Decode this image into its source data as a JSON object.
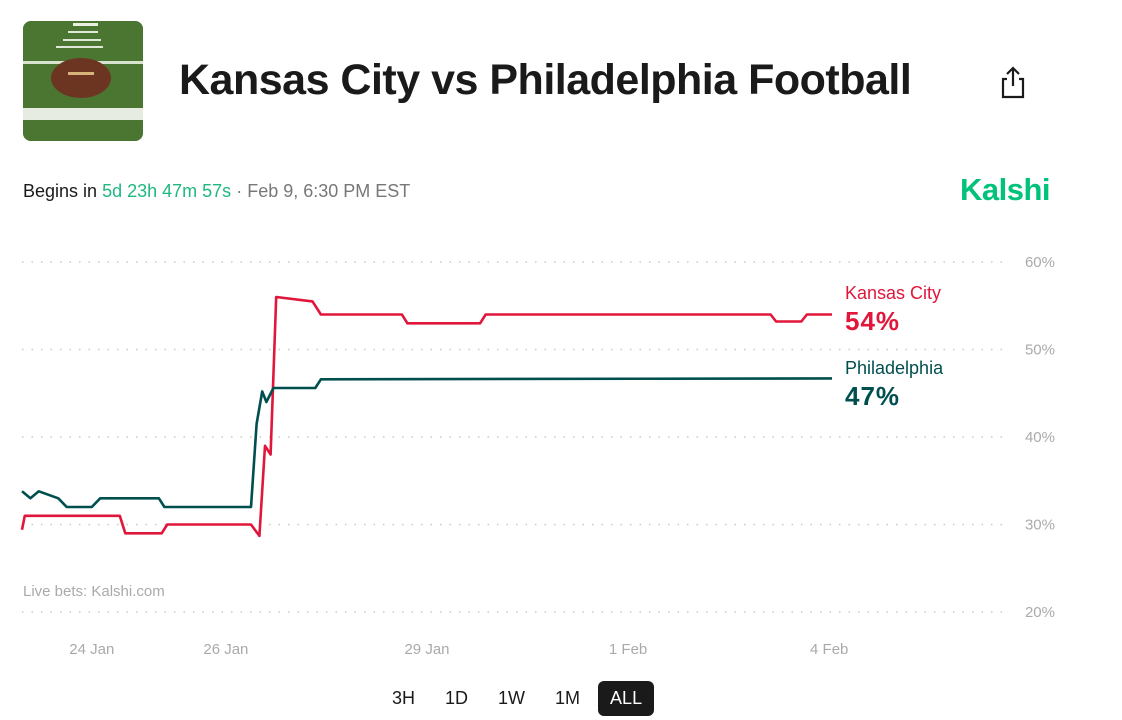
{
  "header": {
    "title": "Kansas City vs Philadelphia Football",
    "begins_label": "Begins in",
    "countdown": "5d 23h 47m 57s",
    "separator": "·",
    "start_time": "Feb 9, 6:30 PM EST",
    "brand": "Kalshi",
    "share_icon": "share-icon",
    "thumbnail": "football-on-field-image"
  },
  "chart_data": {
    "type": "line",
    "ylim": [
      20,
      60
    ],
    "yticks": [
      "20%",
      "30%",
      "40%",
      "50%",
      "60%"
    ],
    "ytick_values": [
      20,
      30,
      40,
      50,
      60
    ],
    "xticks": [
      "24 Jan",
      "26 Jan",
      "29 Jan",
      "1 Feb",
      "4 Feb"
    ],
    "xtick_dates": [
      "2025-01-24T00:00",
      "2025-01-26T00:00",
      "2025-01-29T00:00",
      "2025-02-01T00:00",
      "2025-02-04T00:00"
    ],
    "xlim": [
      "2025-01-22T23:00",
      "2025-02-04T01:00"
    ],
    "grid": "horizontal dotted",
    "watermark": "Live bets: Kalshi.com",
    "series": [
      {
        "name": "Kansas City",
        "current": "54%",
        "color": "#e0173a",
        "points": [
          [
            "2025-01-22T23:00",
            29.4
          ],
          [
            "2025-01-23T00:00",
            31
          ],
          [
            "2025-01-23T13:00",
            31
          ],
          [
            "2025-01-24T10:00",
            31
          ],
          [
            "2025-01-24T12:00",
            29
          ],
          [
            "2025-01-25T01:00",
            29
          ],
          [
            "2025-01-25T03:00",
            30
          ],
          [
            "2025-01-26T09:00",
            30
          ],
          [
            "2025-01-26T12:00",
            28.7
          ],
          [
            "2025-01-26T14:00",
            39
          ],
          [
            "2025-01-26T16:00",
            38
          ],
          [
            "2025-01-26T18:00",
            56
          ],
          [
            "2025-01-27T07:00",
            55.5
          ],
          [
            "2025-01-27T10:00",
            54
          ],
          [
            "2025-01-28T15:00",
            54
          ],
          [
            "2025-01-28T17:00",
            53
          ],
          [
            "2025-01-29T19:00",
            53
          ],
          [
            "2025-01-29T21:00",
            54
          ],
          [
            "2025-02-03T03:00",
            54
          ],
          [
            "2025-02-03T05:00",
            53.2
          ],
          [
            "2025-02-03T14:00",
            53.2
          ],
          [
            "2025-02-03T16:00",
            54
          ],
          [
            "2025-02-04T01:00",
            54
          ]
        ]
      },
      {
        "name": "Philadelphia",
        "current": "47%",
        "color": "#004f4f",
        "points": [
          [
            "2025-01-22T23:00",
            33.8
          ],
          [
            "2025-01-23T02:00",
            33
          ],
          [
            "2025-01-23T05:00",
            33.8
          ],
          [
            "2025-01-23T12:00",
            33
          ],
          [
            "2025-01-23T15:00",
            32
          ],
          [
            "2025-01-24T00:00",
            32
          ],
          [
            "2025-01-24T03:00",
            33
          ],
          [
            "2025-01-25T00:00",
            33
          ],
          [
            "2025-01-25T02:00",
            32
          ],
          [
            "2025-01-26T09:00",
            32
          ],
          [
            "2025-01-26T11:00",
            41.5
          ],
          [
            "2025-01-26T13:00",
            45.2
          ],
          [
            "2025-01-26T14:30",
            44
          ],
          [
            "2025-01-26T17:00",
            45.6
          ],
          [
            "2025-01-27T08:00",
            45.6
          ],
          [
            "2025-01-27T10:00",
            46.6
          ],
          [
            "2025-02-04T01:00",
            46.7
          ]
        ]
      }
    ]
  },
  "range_buttons": [
    {
      "label": "3H",
      "active": false
    },
    {
      "label": "1D",
      "active": false
    },
    {
      "label": "1W",
      "active": false
    },
    {
      "label": "1M",
      "active": false
    },
    {
      "label": "ALL",
      "active": true
    }
  ]
}
